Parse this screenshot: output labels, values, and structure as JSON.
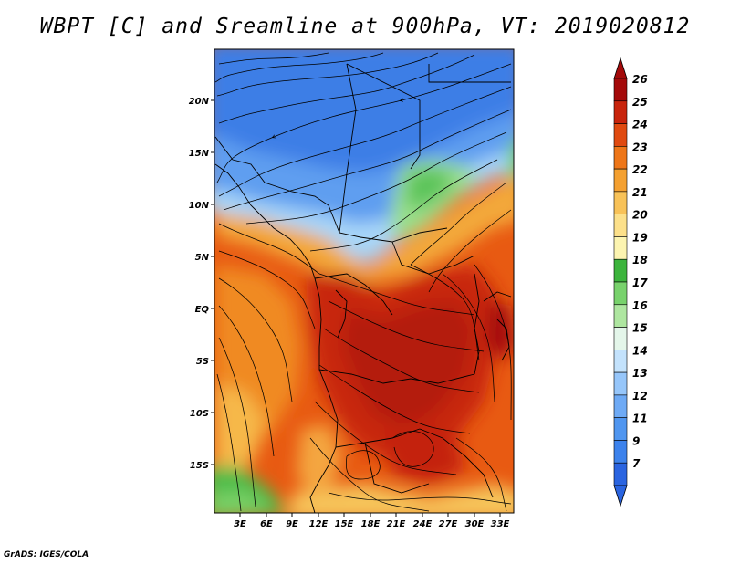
{
  "title": "WBPT [C] and Sreamline at 900hPa, VT: 2019020812",
  "credit": "GrADS: IGES/COLA",
  "map": {
    "lat_labels": [
      "20N",
      "15N",
      "10N",
      "5N",
      "EQ",
      "5S",
      "10S",
      "15S"
    ],
    "lon_labels": [
      "3E",
      "6E",
      "9E",
      "12E",
      "15E",
      "18E",
      "21E",
      "24E",
      "27E",
      "30E",
      "33E"
    ]
  },
  "colorbar": {
    "labels": [
      "7",
      "9",
      "11",
      "12",
      "13",
      "14",
      "15",
      "16",
      "17",
      "18",
      "19",
      "20",
      "21",
      "22",
      "23",
      "24",
      "25",
      "26"
    ],
    "colors": [
      "#2a64e0",
      "#3c82ec",
      "#5096f0",
      "#6eaaf5",
      "#96c6fa",
      "#c3e2fc",
      "#e4f6ea",
      "#aee6a0",
      "#78d26c",
      "#3cb43c",
      "#fcf4b0",
      "#fce08a",
      "#f8c258",
      "#f4a030",
      "#ee7618",
      "#e04a10",
      "#c8240c",
      "#a40a0a"
    ]
  }
}
